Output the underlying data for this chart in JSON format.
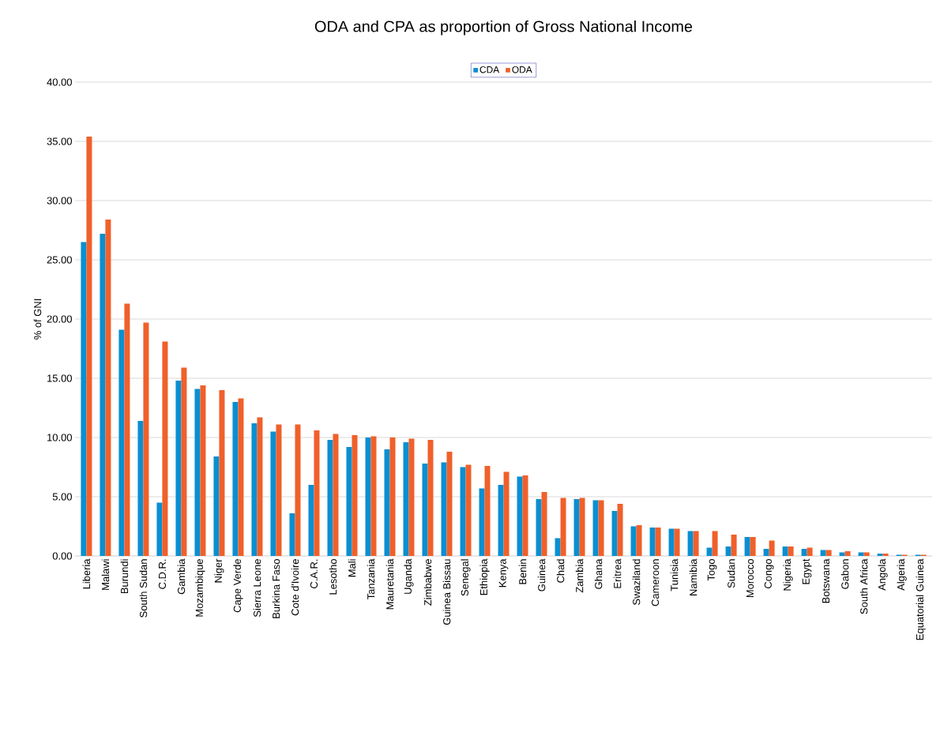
{
  "chart_data": {
    "type": "bar",
    "title": "ODA and CPA as proportion of Gross National Income",
    "ylabel": "% of GNI",
    "categories": [
      "Liberia",
      "Malawi",
      "Burundi",
      "South Sudan",
      "C.D.R.",
      "Gambia",
      "Mozambique",
      "Niger",
      "Cape Verde",
      "Sierra Leone",
      "Burkina Faso",
      "Cote d'Ivoire",
      "C.A.R.",
      "Lesotho",
      "Mali",
      "Tanzania",
      "Mauretania",
      "Uganda",
      "Zimbabwe",
      "Guinea Bissau",
      "Senegal",
      "Ethiopia",
      "Kenya",
      "Benin",
      "Guinea",
      "Chad",
      "Zambia",
      "Ghana",
      "Eritrea",
      "Swaziland",
      "Cameroon",
      "Tunisia",
      "Namibia",
      "Togo",
      "Sudan",
      "Morocco",
      "Congo",
      "Nigeria",
      "Egypt",
      "Botswana",
      "Gabon",
      "South Africa",
      "Angola",
      "Algeria",
      "Equatorial Guinea"
    ],
    "series": [
      {
        "name": "CDA",
        "color": "#0a8fd1",
        "values": [
          26.5,
          27.2,
          19.1,
          11.4,
          4.5,
          14.8,
          14.1,
          8.4,
          13.0,
          11.2,
          10.5,
          3.6,
          6.0,
          9.8,
          9.2,
          10.0,
          9.0,
          9.6,
          7.8,
          7.9,
          7.5,
          5.7,
          6.0,
          6.7,
          4.8,
          1.5,
          4.8,
          4.7,
          3.8,
          2.5,
          2.4,
          2.3,
          2.1,
          0.7,
          0.8,
          1.6,
          0.6,
          0.8,
          0.6,
          0.5,
          0.3,
          0.3,
          0.2,
          0.1,
          0.1
        ]
      },
      {
        "name": "ODA",
        "color": "#f0602a",
        "values": [
          35.4,
          28.4,
          21.3,
          19.7,
          18.1,
          15.9,
          14.4,
          14.0,
          13.3,
          11.7,
          11.1,
          11.1,
          10.6,
          10.3,
          10.2,
          10.1,
          10.0,
          9.9,
          9.8,
          8.8,
          7.7,
          7.6,
          7.1,
          6.8,
          5.4,
          4.9,
          4.9,
          4.7,
          4.4,
          2.6,
          2.4,
          2.3,
          2.1,
          2.1,
          1.8,
          1.6,
          1.3,
          0.8,
          0.7,
          0.5,
          0.4,
          0.3,
          0.2,
          0.1,
          0.1
        ]
      }
    ],
    "ylim": [
      0,
      40
    ],
    "yticks": [
      {
        "value": 0,
        "label": "0.00"
      },
      {
        "value": 5,
        "label": "5.00"
      },
      {
        "value": 10,
        "label": "10.00"
      },
      {
        "value": 15,
        "label": "15.00"
      },
      {
        "value": 20,
        "label": "20.00"
      },
      {
        "value": 25,
        "label": "25.00"
      },
      {
        "value": 30,
        "label": "30.00"
      },
      {
        "value": 35,
        "label": "35.00"
      },
      {
        "value": 40,
        "label": "40.00"
      }
    ],
    "grid": "y",
    "legend": "top"
  }
}
